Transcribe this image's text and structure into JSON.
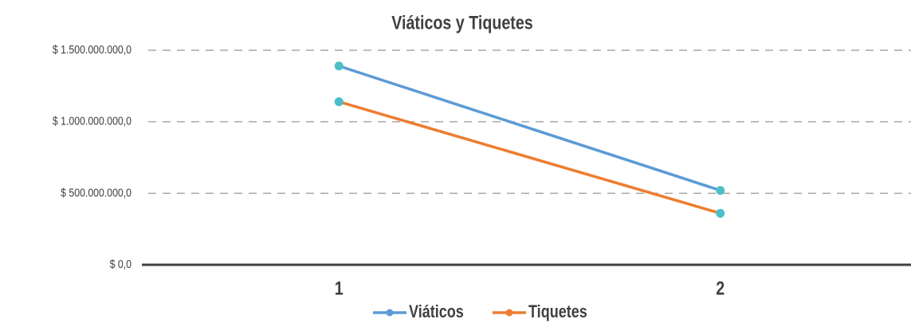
{
  "chart_data": {
    "type": "line",
    "title": "Viáticos y Tiquetes",
    "categories": [
      "1",
      "2"
    ],
    "series": [
      {
        "name": "Viáticos",
        "color": "#5b9bd5",
        "values": [
          1390000000,
          520000000
        ]
      },
      {
        "name": "Tiquetes",
        "color": "#ed7d31",
        "values": [
          1140000000,
          360000000
        ]
      }
    ],
    "marker_color": "#4bbfc8",
    "ylim": [
      0,
      1500000000
    ],
    "yticks": [
      {
        "value": 0,
        "label": "$ 0,0"
      },
      {
        "value": 500000000,
        "label": "$ 500.000.000,0"
      },
      {
        "value": 1000000000,
        "label": "$ 1.000.000.000,0"
      },
      {
        "value": 1500000000,
        "label": "$ 1.500.000.000,0"
      }
    ],
    "grid": true,
    "legend": "bottom"
  }
}
